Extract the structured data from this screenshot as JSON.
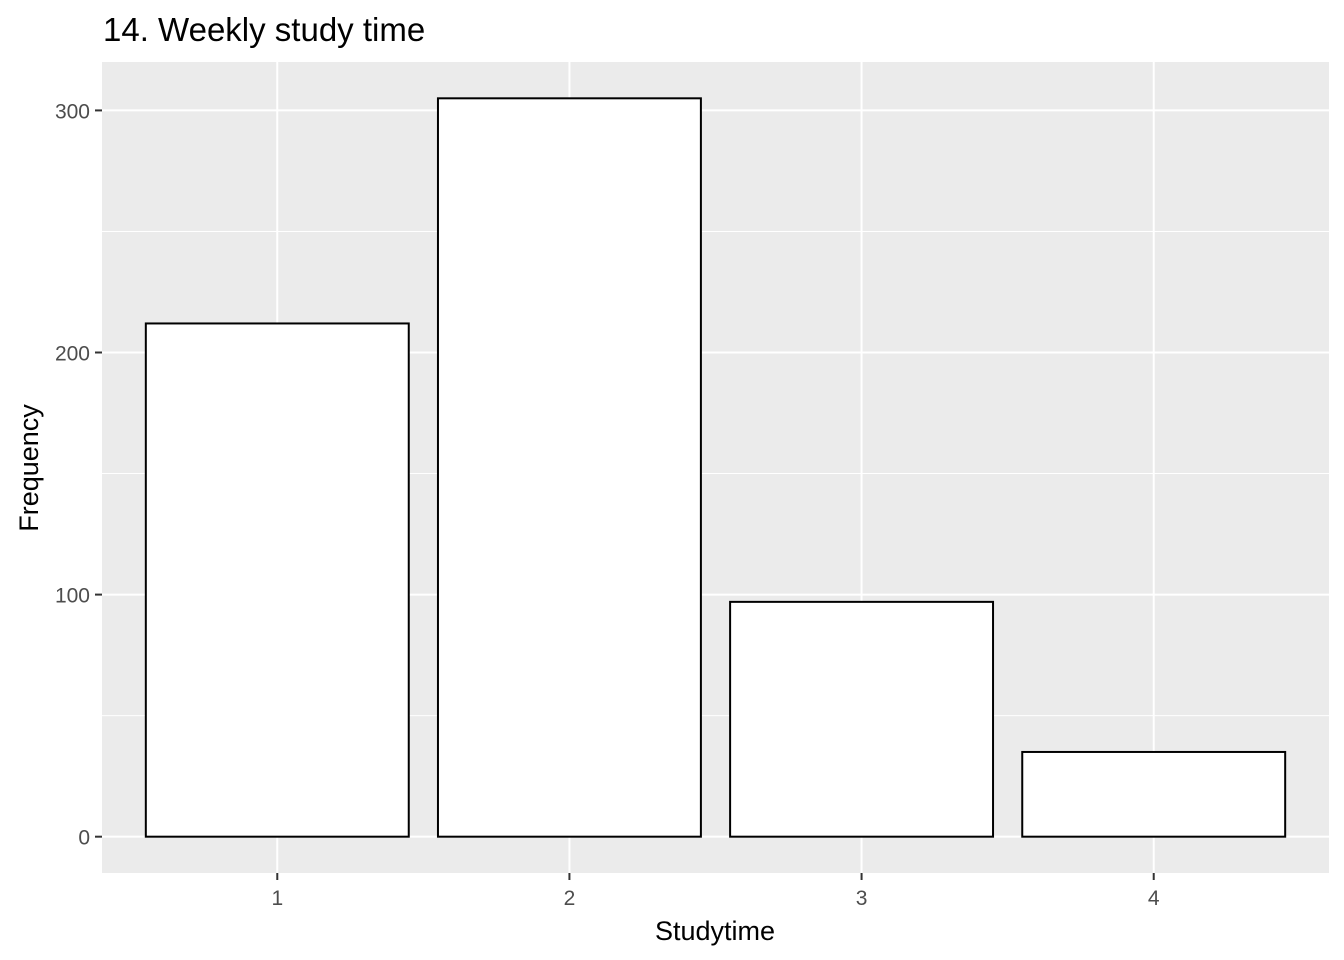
{
  "chart_data": {
    "type": "bar",
    "title": "14. Weekly study time",
    "xlabel": "Studytime",
    "ylabel": "Frequency",
    "categories": [
      "1",
      "2",
      "3",
      "4"
    ],
    "values": [
      212,
      305,
      97,
      35
    ],
    "ylim": [
      -15,
      320
    ],
    "yticks": [
      0,
      100,
      200,
      300
    ],
    "grid": true,
    "legend": "none",
    "colors": {
      "panel_background": "#ebebeb",
      "gridline": "#ffffff",
      "bar_fill": "#ffffff",
      "bar_outline": "#000000",
      "tick_text": "#4d4d4d",
      "tick_mark": "#333333"
    }
  }
}
